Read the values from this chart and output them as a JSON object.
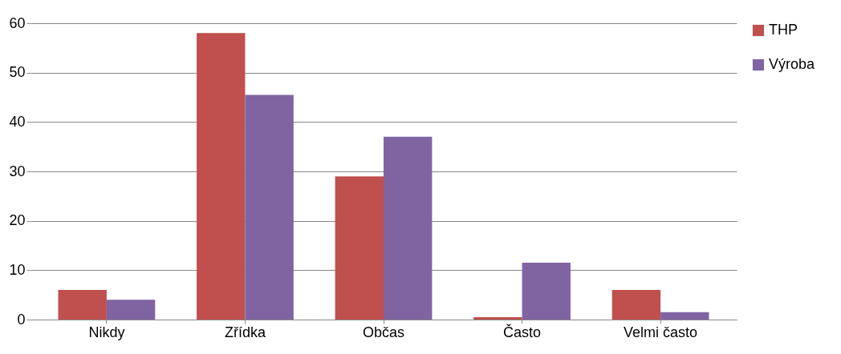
{
  "chart_data": {
    "type": "bar",
    "categories": [
      "Nikdy",
      "Zřídka",
      "Občas",
      "Často",
      "Velmi často"
    ],
    "series": [
      {
        "name": "THP",
        "color": "#c0504d",
        "values": [
          6,
          58,
          29,
          0.5,
          6
        ]
      },
      {
        "name": "Výroba",
        "color": "#8064a2",
        "values": [
          4,
          45.5,
          37,
          11.5,
          1.5
        ]
      }
    ],
    "ylim": [
      0,
      60
    ],
    "yticks": [
      0,
      10,
      20,
      30,
      40,
      50,
      60
    ],
    "grid": "y",
    "legend": "right"
  }
}
